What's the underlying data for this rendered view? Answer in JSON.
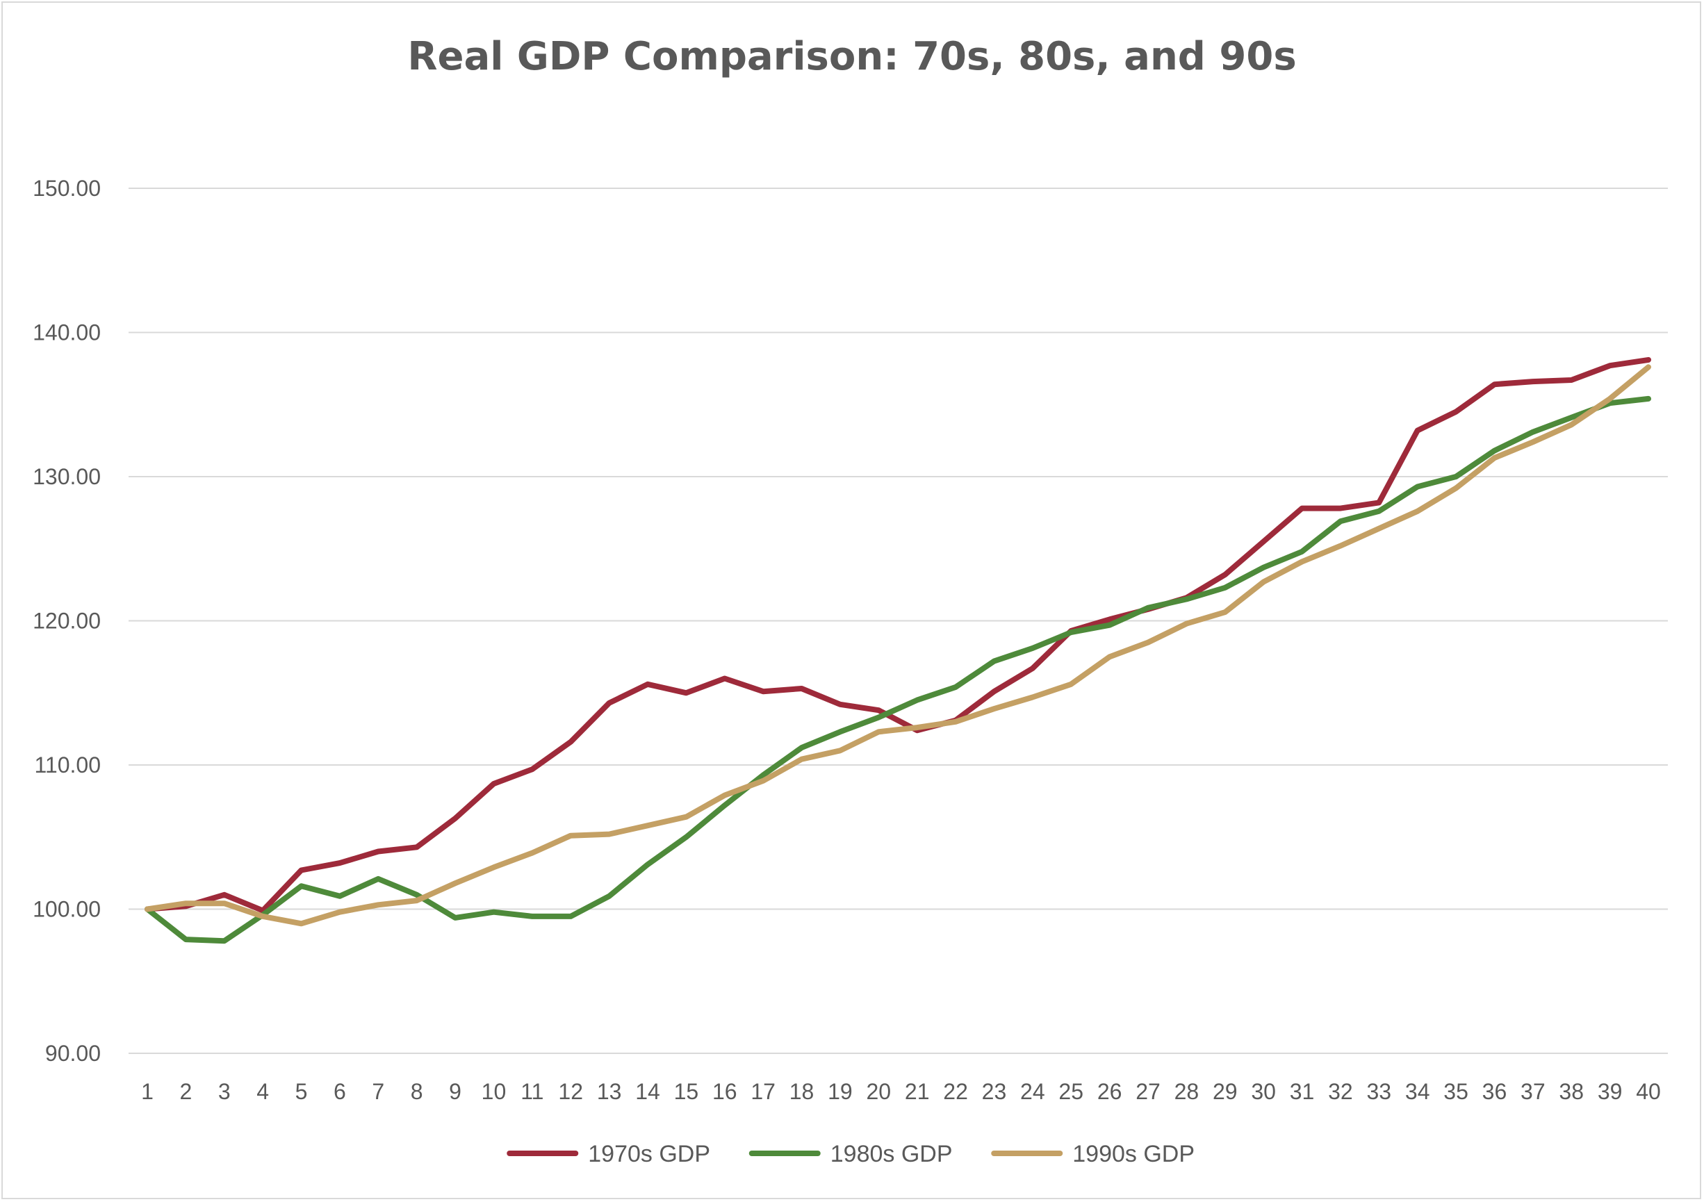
{
  "chart_data": {
    "type": "line",
    "title": "Real GDP Comparison: 70s, 80s, and 90s",
    "xlabel": "",
    "ylabel": "",
    "x": [
      1,
      2,
      3,
      4,
      5,
      6,
      7,
      8,
      9,
      10,
      11,
      12,
      13,
      14,
      15,
      16,
      17,
      18,
      19,
      20,
      21,
      22,
      23,
      24,
      25,
      26,
      27,
      28,
      29,
      30,
      31,
      32,
      33,
      34,
      35,
      36,
      37,
      38,
      39,
      40
    ],
    "ylim": [
      90,
      150
    ],
    "yticks": [
      "90.00",
      "100.00",
      "110.00",
      "120.00",
      "130.00",
      "140.00",
      "150.00"
    ],
    "ytick_values": [
      90,
      100,
      110,
      120,
      130,
      140,
      150
    ],
    "grid": true,
    "legend_position": "bottom",
    "series": [
      {
        "name": "1970s GDP",
        "color": "#9e2a3a",
        "values": [
          100.0,
          100.2,
          101.0,
          99.9,
          102.7,
          103.2,
          104.0,
          104.3,
          106.3,
          108.7,
          109.7,
          111.6,
          114.3,
          115.6,
          115.0,
          116.0,
          115.1,
          115.3,
          114.2,
          113.8,
          112.4,
          113.1,
          115.1,
          116.7,
          119.3,
          120.1,
          120.8,
          121.6,
          123.2,
          125.5,
          127.8,
          127.8,
          128.2,
          133.2,
          134.5,
          136.4,
          136.6,
          136.7,
          137.7,
          138.1
        ]
      },
      {
        "name": "1980s GDP",
        "color": "#4e8a3a",
        "values": [
          100.0,
          97.9,
          97.8,
          99.6,
          101.6,
          100.9,
          102.1,
          101.0,
          99.4,
          99.8,
          99.5,
          99.5,
          100.9,
          103.1,
          105.0,
          107.2,
          109.3,
          111.2,
          112.3,
          113.3,
          114.5,
          115.4,
          117.2,
          118.1,
          119.2,
          119.7,
          120.9,
          121.5,
          122.3,
          123.7,
          124.8,
          126.9,
          127.6,
          129.3,
          130.0,
          131.8,
          133.1,
          134.1,
          135.1,
          135.4
        ]
      },
      {
        "name": "1990s GDP",
        "color": "#c4a064",
        "values": [
          100.0,
          100.4,
          100.4,
          99.5,
          99.0,
          99.8,
          100.3,
          100.6,
          101.8,
          102.9,
          103.9,
          105.1,
          105.2,
          105.8,
          106.4,
          107.9,
          108.9,
          110.4,
          111.0,
          112.3,
          112.6,
          113.0,
          113.9,
          114.7,
          115.6,
          117.5,
          118.5,
          119.8,
          120.6,
          122.7,
          124.1,
          125.2,
          126.4,
          127.6,
          129.2,
          131.3,
          132.4,
          133.6,
          135.4,
          137.6
        ]
      }
    ]
  }
}
